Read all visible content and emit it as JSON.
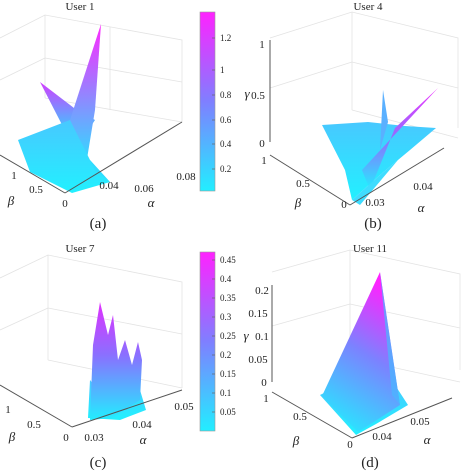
{
  "chart_data": [
    {
      "type": "surface3d",
      "panel": "a",
      "title": "User 1",
      "caption": "(a)",
      "ylabel_beta": "β",
      "xlabel_alpha": "α",
      "beta_ticks": [
        "0",
        "0.5",
        "1"
      ],
      "alpha_ticks": [
        "0.04",
        "0.06",
        "0.08"
      ],
      "colorbar_ticks": [
        "0.2",
        "0.4",
        "0.6",
        "0.8",
        "1",
        "1.2"
      ],
      "colorbar_range": [
        0.1,
        1.35
      ]
    },
    {
      "type": "surface3d",
      "panel": "b",
      "title": "User 4",
      "caption": "(b)",
      "ylabel_beta": "β",
      "xlabel_alpha": "α",
      "zlabel_gamma": "γ",
      "z_ticks": [
        "0",
        "0.5",
        "1"
      ],
      "beta_ticks": [
        "0",
        "0.5",
        "1"
      ],
      "alpha_ticks": [
        "0.03",
        "0.04"
      ]
    },
    {
      "type": "surface3d",
      "panel": "c",
      "title": "User 7",
      "caption": "(c)",
      "ylabel_beta": "β",
      "xlabel_alpha": "α",
      "beta_ticks": [
        "0",
        "0.5",
        "1"
      ],
      "alpha_ticks": [
        "0.03",
        "0.04",
        "0.05"
      ],
      "colorbar_ticks": [
        "0.05",
        "0.1",
        "0.15",
        "0.2",
        "0.25",
        "0.3",
        "0.35",
        "0.4",
        "0.45"
      ],
      "colorbar_range": [
        0.02,
        0.48
      ]
    },
    {
      "type": "surface3d",
      "panel": "d",
      "title": "User 11",
      "caption": "(d)",
      "ylabel_beta": "β",
      "xlabel_alpha": "α",
      "zlabel_gamma": "γ",
      "z_ticks": [
        "0",
        "0.05",
        "0.1",
        "0.15",
        "0.2"
      ],
      "beta_ticks": [
        "0",
        "0.5",
        "1"
      ],
      "alpha_ticks": [
        "0.04",
        "0.05"
      ]
    }
  ],
  "colors": {
    "low": "#22eeff",
    "mid": "#7f7fff",
    "high": "#ff22ff",
    "axis": "#555555",
    "grid": "#e3e3e3"
  }
}
